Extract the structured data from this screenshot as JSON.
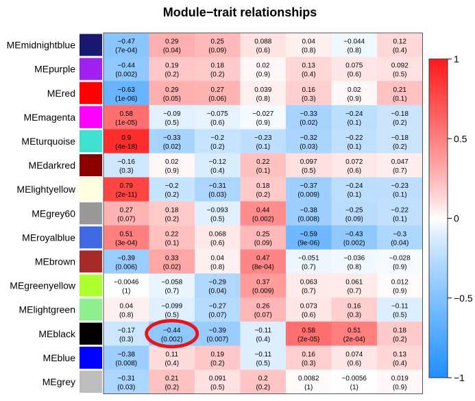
{
  "chart_data": {
    "type": "heatmap",
    "title": "Module−trait relationships",
    "xlabel": "",
    "ylabel": "",
    "rows": [
      "MEmidnightblue",
      "MEpurple",
      "MEred",
      "MEmagenta",
      "MEturquoise",
      "MEdarkred",
      "MElightyellow",
      "MEgrey60",
      "MEroyalblue",
      "MEbrown",
      "MEgreenyellow",
      "MElightgreen",
      "MEblack",
      "MEblue",
      "MEgrey"
    ],
    "row_colors": [
      "#191970",
      "#a020f0",
      "#ff0000",
      "#ff00ff",
      "#40e0d0",
      "#8b0000",
      "#ffffe0",
      "#999999",
      "#4169e1",
      "#a52a2a",
      "#adff2f",
      "#90ee90",
      "#000000",
      "#0000ff",
      "#bebebe"
    ],
    "columns": [
      "",
      "",
      "",
      "",
      "",
      "",
      ""
    ],
    "values": [
      [
        -0.47,
        0.29,
        0.25,
        0.088,
        0.04,
        -0.044,
        0.12
      ],
      [
        -0.44,
        0.19,
        0.18,
        0.02,
        0.13,
        0.075,
        0.092
      ],
      [
        -0.63,
        0.29,
        0.27,
        0.039,
        0.16,
        0.02,
        0.21
      ],
      [
        0.58,
        -0.09,
        -0.075,
        -0.027,
        -0.33,
        -0.24,
        -0.18
      ],
      [
        0.9,
        -0.33,
        -0.2,
        -0.23,
        -0.32,
        -0.22,
        -0.18
      ],
      [
        -0.16,
        0.02,
        -0.12,
        0.22,
        0.097,
        0.072,
        0.047
      ],
      [
        0.79,
        -0.2,
        -0.31,
        0.18,
        -0.37,
        -0.24,
        -0.23
      ],
      [
        0.27,
        0.18,
        -0.093,
        0.44,
        -0.38,
        -0.25,
        -0.22
      ],
      [
        0.51,
        0.22,
        0.068,
        0.25,
        -0.59,
        -0.43,
        -0.3
      ],
      [
        -0.39,
        0.33,
        0.04,
        0.47,
        -0.051,
        -0.036,
        -0.028
      ],
      [
        -0.0046,
        -0.058,
        -0.29,
        0.37,
        0.063,
        0.061,
        0.012
      ],
      [
        0.04,
        -0.099,
        -0.27,
        0.26,
        0.073,
        0.16,
        -0.11
      ],
      [
        -0.17,
        -0.44,
        -0.39,
        -0.11,
        0.58,
        0.51,
        0.18
      ],
      [
        -0.38,
        0.11,
        0.19,
        -0.11,
        0.16,
        0.074,
        0.13
      ],
      [
        -0.31,
        0.21,
        0.091,
        0.2,
        0.0082,
        -0.0056,
        0.019
      ]
    ],
    "pvalues": [
      [
        "(7e-04)",
        "(0.04)",
        "(0.09)",
        "(0.6)",
        "(0.8)",
        "(0.8)",
        "(0.4)"
      ],
      [
        "(0.002)",
        "(0.2)",
        "(0.2)",
        "(0.9)",
        "(0.4)",
        "(0.6)",
        "(0.5)"
      ],
      [
        "(1e-06)",
        "(0.05)",
        "(0.06)",
        "(0.8)",
        "(0.3)",
        "(0.9)",
        "(0.1)"
      ],
      [
        "(1e-05)",
        "(0.5)",
        "(0.6)",
        "(0.9)",
        "(0.02)",
        "(0.1)",
        "(0.2)"
      ],
      [
        "(4e-18)",
        "(0.02)",
        "(0.2)",
        "(0.1)",
        "(0.03)",
        "(0.1)",
        "(0.2)"
      ],
      [
        "(0.3)",
        "(0.9)",
        "(0.4)",
        "(0.1)",
        "(0.5)",
        "(0.6)",
        "(0.7)"
      ],
      [
        "(2e-11)",
        "(0.2)",
        "(0.03)",
        "(0.2)",
        "(0.009)",
        "(0.1)",
        "(0.1)"
      ],
      [
        "(0.07)",
        "(0.2)",
        "(0.5)",
        "(0.002)",
        "(0.008)",
        "(0.09)",
        "(0.1)"
      ],
      [
        "(3e-04)",
        "(0.1)",
        "(0.6)",
        "(0.09)",
        "(9e-06)",
        "(0.002)",
        "(0.04)"
      ],
      [
        "(0.006)",
        "(0.02)",
        "(0.8)",
        "(8e-04)",
        "(0.7)",
        "(0.8)",
        "(0.9)"
      ],
      [
        "(1)",
        "(0.7)",
        "(0.04)",
        "(0.009)",
        "(0.7)",
        "(0.7)",
        "(0.9)"
      ],
      [
        "(0.8)",
        "(0.5)",
        "(0.07)",
        "(0.07)",
        "(0.6)",
        "(0.3)",
        "(0.5)"
      ],
      [
        "(0.3)",
        "(0.002)",
        "(0.007)",
        "(0.4)",
        "(2e-05)",
        "(2e-04)",
        "(0.2)"
      ],
      [
        "(0.008)",
        "(0.4)",
        "(0.2)",
        "(0.5)",
        "(0.3)",
        "(0.6)",
        "(0.4)"
      ],
      [
        "(0.03)",
        "(0.2)",
        "(0.5)",
        "(0.2)",
        "(1)",
        "(1)",
        "(0.9)"
      ]
    ],
    "color_scale": {
      "min": -1,
      "max": 1,
      "low_color": "#1e90ff",
      "mid_color": "#ffffff",
      "high_color": "#ff1a1a"
    },
    "colorbar_ticks": [
      1,
      0.5,
      0,
      -0.5,
      -1
    ],
    "colorbar_tick_labels": [
      "1",
      "0.5",
      "0",
      "−0.5",
      "−1"
    ],
    "highlight": {
      "row": 12,
      "column": 1,
      "shape": "ellipse",
      "color": "#e8141b"
    }
  }
}
